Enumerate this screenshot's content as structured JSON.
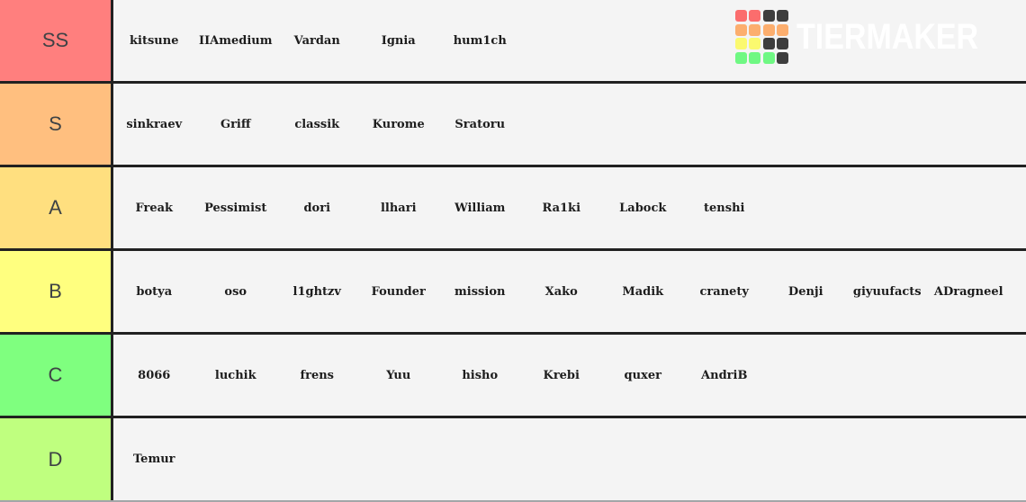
{
  "logo": {
    "text": "TIERMAKER",
    "palette": {
      "red": "#fb6d6d",
      "orange": "#fcae6e",
      "yellow": "#fbf96f",
      "green": "#6ff883",
      "dark": "#3e3e3e"
    },
    "grid": [
      "red",
      "red",
      "dark",
      "dark",
      "orange",
      "orange",
      "orange",
      "orange",
      "yellow",
      "yellow",
      "dark",
      "dark",
      "green",
      "green",
      "green",
      "dark"
    ]
  },
  "tiers": [
    {
      "label": "SS",
      "color": "#ff7f7e",
      "items": [
        "kitsune",
        "IIAmedium",
        "Vardan",
        "Ignia",
        "hum1ch"
      ]
    },
    {
      "label": "S",
      "color": "#ffbf7f",
      "items": [
        "sinkraev",
        "Griff",
        "classik",
        "Kurome",
        "Sratoru"
      ]
    },
    {
      "label": "A",
      "color": "#ffdf7f",
      "items": [
        "Freak",
        "Pessimist",
        "dori",
        "llhari",
        "William",
        "Ra1ki",
        "Labock",
        "tenshi"
      ]
    },
    {
      "label": "B",
      "color": "#ffff7f",
      "items": [
        "botya",
        "oso",
        "l1ghtzv",
        "Founder",
        "mission",
        "Xako",
        "Madik",
        "cranety",
        "Denji",
        "giyuufacts",
        "ADragneel"
      ]
    },
    {
      "label": "C",
      "color": "#7fff7f",
      "items": [
        "8066",
        "luchik",
        "frens",
        "Yuu",
        "hisho",
        "Krebi",
        "quxer",
        "AndriB"
      ]
    },
    {
      "label": "D",
      "color": "#bfff7f",
      "items": [
        "Temur"
      ]
    }
  ]
}
